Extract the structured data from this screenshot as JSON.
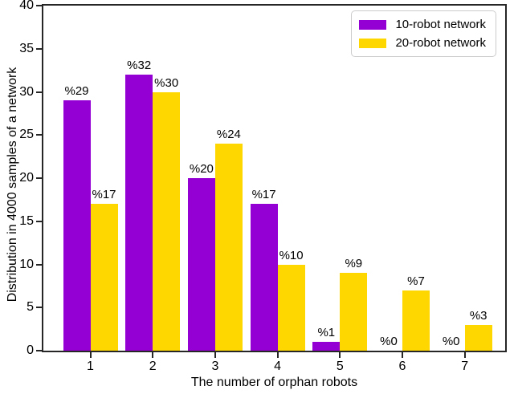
{
  "figure": {
    "background": "#ffffff",
    "spine_color": "#262626"
  },
  "chart_data": {
    "type": "bar",
    "title": "",
    "xlabel": "The number of orphan robots",
    "ylabel": "Distribution in 4000 samples of a network",
    "categories": [
      "1",
      "2",
      "3",
      "4",
      "5",
      "6",
      "7"
    ],
    "series": [
      {
        "name": "10-robot network",
        "color": "#9400D3",
        "values": [
          29,
          32,
          20,
          17,
          1,
          0,
          0
        ],
        "labels": [
          "%29",
          "%32",
          "%20",
          "%17",
          "%1",
          "%0",
          "%0"
        ]
      },
      {
        "name": "20-robot network",
        "color": "#FFD700",
        "values": [
          17,
          30,
          24,
          10,
          9,
          7,
          3
        ],
        "labels": [
          "%17",
          "%30",
          "%24",
          "%10",
          "%9",
          "%7",
          "%3"
        ]
      }
    ],
    "ylim": [
      0,
      40
    ],
    "yticks": [
      0,
      5,
      10,
      15,
      20,
      25,
      30,
      35,
      40
    ],
    "grid": false,
    "legend_position": "upper right"
  }
}
